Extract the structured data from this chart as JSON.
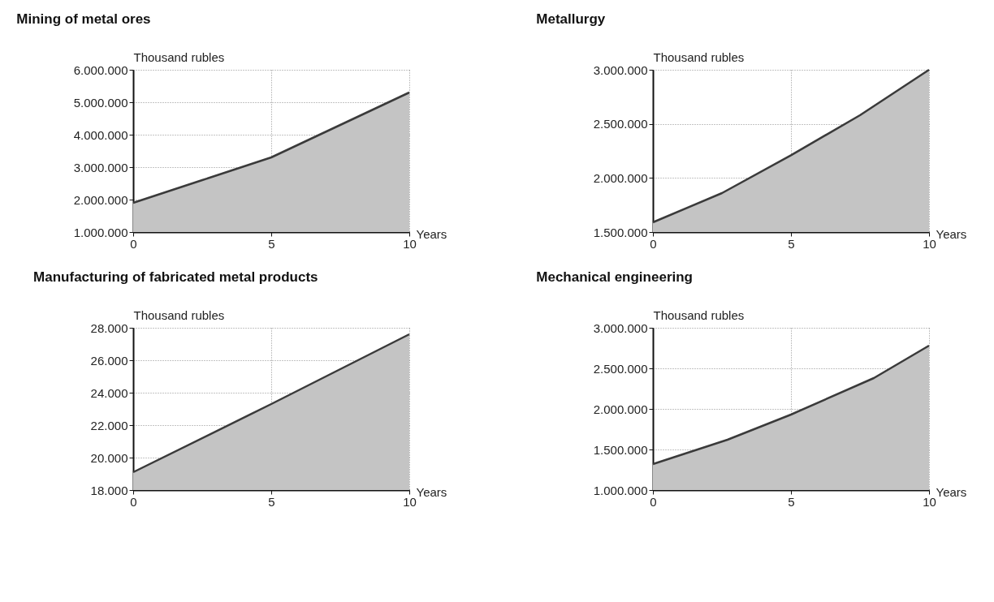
{
  "chart_data": [
    {
      "type": "area",
      "title": "Mining of metal ores",
      "ylabel": "Thousand rubles",
      "xlabel": "Years",
      "x": [
        0,
        2.5,
        5,
        7.5,
        10
      ],
      "series": [
        {
          "color": "#c4c4c4",
          "values": [
            1900000,
            2600000,
            3300000,
            4300000,
            5300000
          ]
        }
      ],
      "xlim": [
        0,
        10
      ],
      "xticks": [
        0,
        5,
        10
      ],
      "ylim": [
        1000000,
        6000000
      ],
      "yticks": [
        {
          "value": 1000000,
          "label": "1.000.000"
        },
        {
          "value": 2000000,
          "label": "2.000.000"
        },
        {
          "value": 3000000,
          "label": "3.000.000"
        },
        {
          "value": 4000000,
          "label": "4.000.000"
        },
        {
          "value": 5000000,
          "label": "5.000.000"
        },
        {
          "value": 6000000,
          "label": "6.000.000"
        }
      ],
      "grid": true
    },
    {
      "type": "area",
      "title": "Metallurgy",
      "ylabel": "Thousand rubles",
      "xlabel": "Years",
      "x": [
        0,
        2.5,
        5,
        7.5,
        10
      ],
      "series": [
        {
          "color": "#c4c4c4",
          "values": [
            1590000,
            1860000,
            2210000,
            2580000,
            3000000
          ]
        }
      ],
      "xlim": [
        0,
        10
      ],
      "xticks": [
        0,
        5,
        10
      ],
      "ylim": [
        1500000,
        3000000
      ],
      "yticks": [
        {
          "value": 1500000,
          "label": "1.500.000"
        },
        {
          "value": 2000000,
          "label": "2.000.000"
        },
        {
          "value": 2500000,
          "label": "2.500.000"
        },
        {
          "value": 3000000,
          "label": "3.000.000"
        }
      ],
      "grid": true
    },
    {
      "type": "area",
      "title": "Manufacturing of fabricated metal products",
      "ylabel": "Thousand rubles",
      "xlabel": "Years",
      "x": [
        0,
        5,
        10
      ],
      "series": [
        {
          "color": "#c4c4c4",
          "values": [
            19100,
            23300,
            27600
          ]
        }
      ],
      "xlim": [
        0,
        10
      ],
      "xticks": [
        0,
        5,
        10
      ],
      "ylim": [
        18000,
        28000
      ],
      "yticks": [
        {
          "value": 18000,
          "label": "18.000"
        },
        {
          "value": 20000,
          "label": "20.000"
        },
        {
          "value": 22000,
          "label": "22.000"
        },
        {
          "value": 24000,
          "label": "24.000"
        },
        {
          "value": 26000,
          "label": "26.000"
        },
        {
          "value": 28000,
          "label": "28.000"
        }
      ],
      "grid": true
    },
    {
      "type": "area",
      "title": "Mechanical engineering",
      "ylabel": "Thousand rubles",
      "xlabel": "Years",
      "x": [
        0,
        2.7,
        5,
        8,
        10
      ],
      "series": [
        {
          "color": "#c4c4c4",
          "values": [
            1320000,
            1620000,
            1930000,
            2380000,
            2780000
          ]
        }
      ],
      "xlim": [
        0,
        10
      ],
      "xticks": [
        0,
        5,
        10
      ],
      "ylim": [
        1000000,
        3000000
      ],
      "yticks": [
        {
          "value": 1000000,
          "label": "1.000.000"
        },
        {
          "value": 1500000,
          "label": "1.500.000"
        },
        {
          "value": 2000000,
          "label": "2.000.000"
        },
        {
          "value": 2500000,
          "label": "2.500.000"
        },
        {
          "value": 3000000,
          "label": "3.000.000"
        }
      ],
      "grid": true
    }
  ]
}
